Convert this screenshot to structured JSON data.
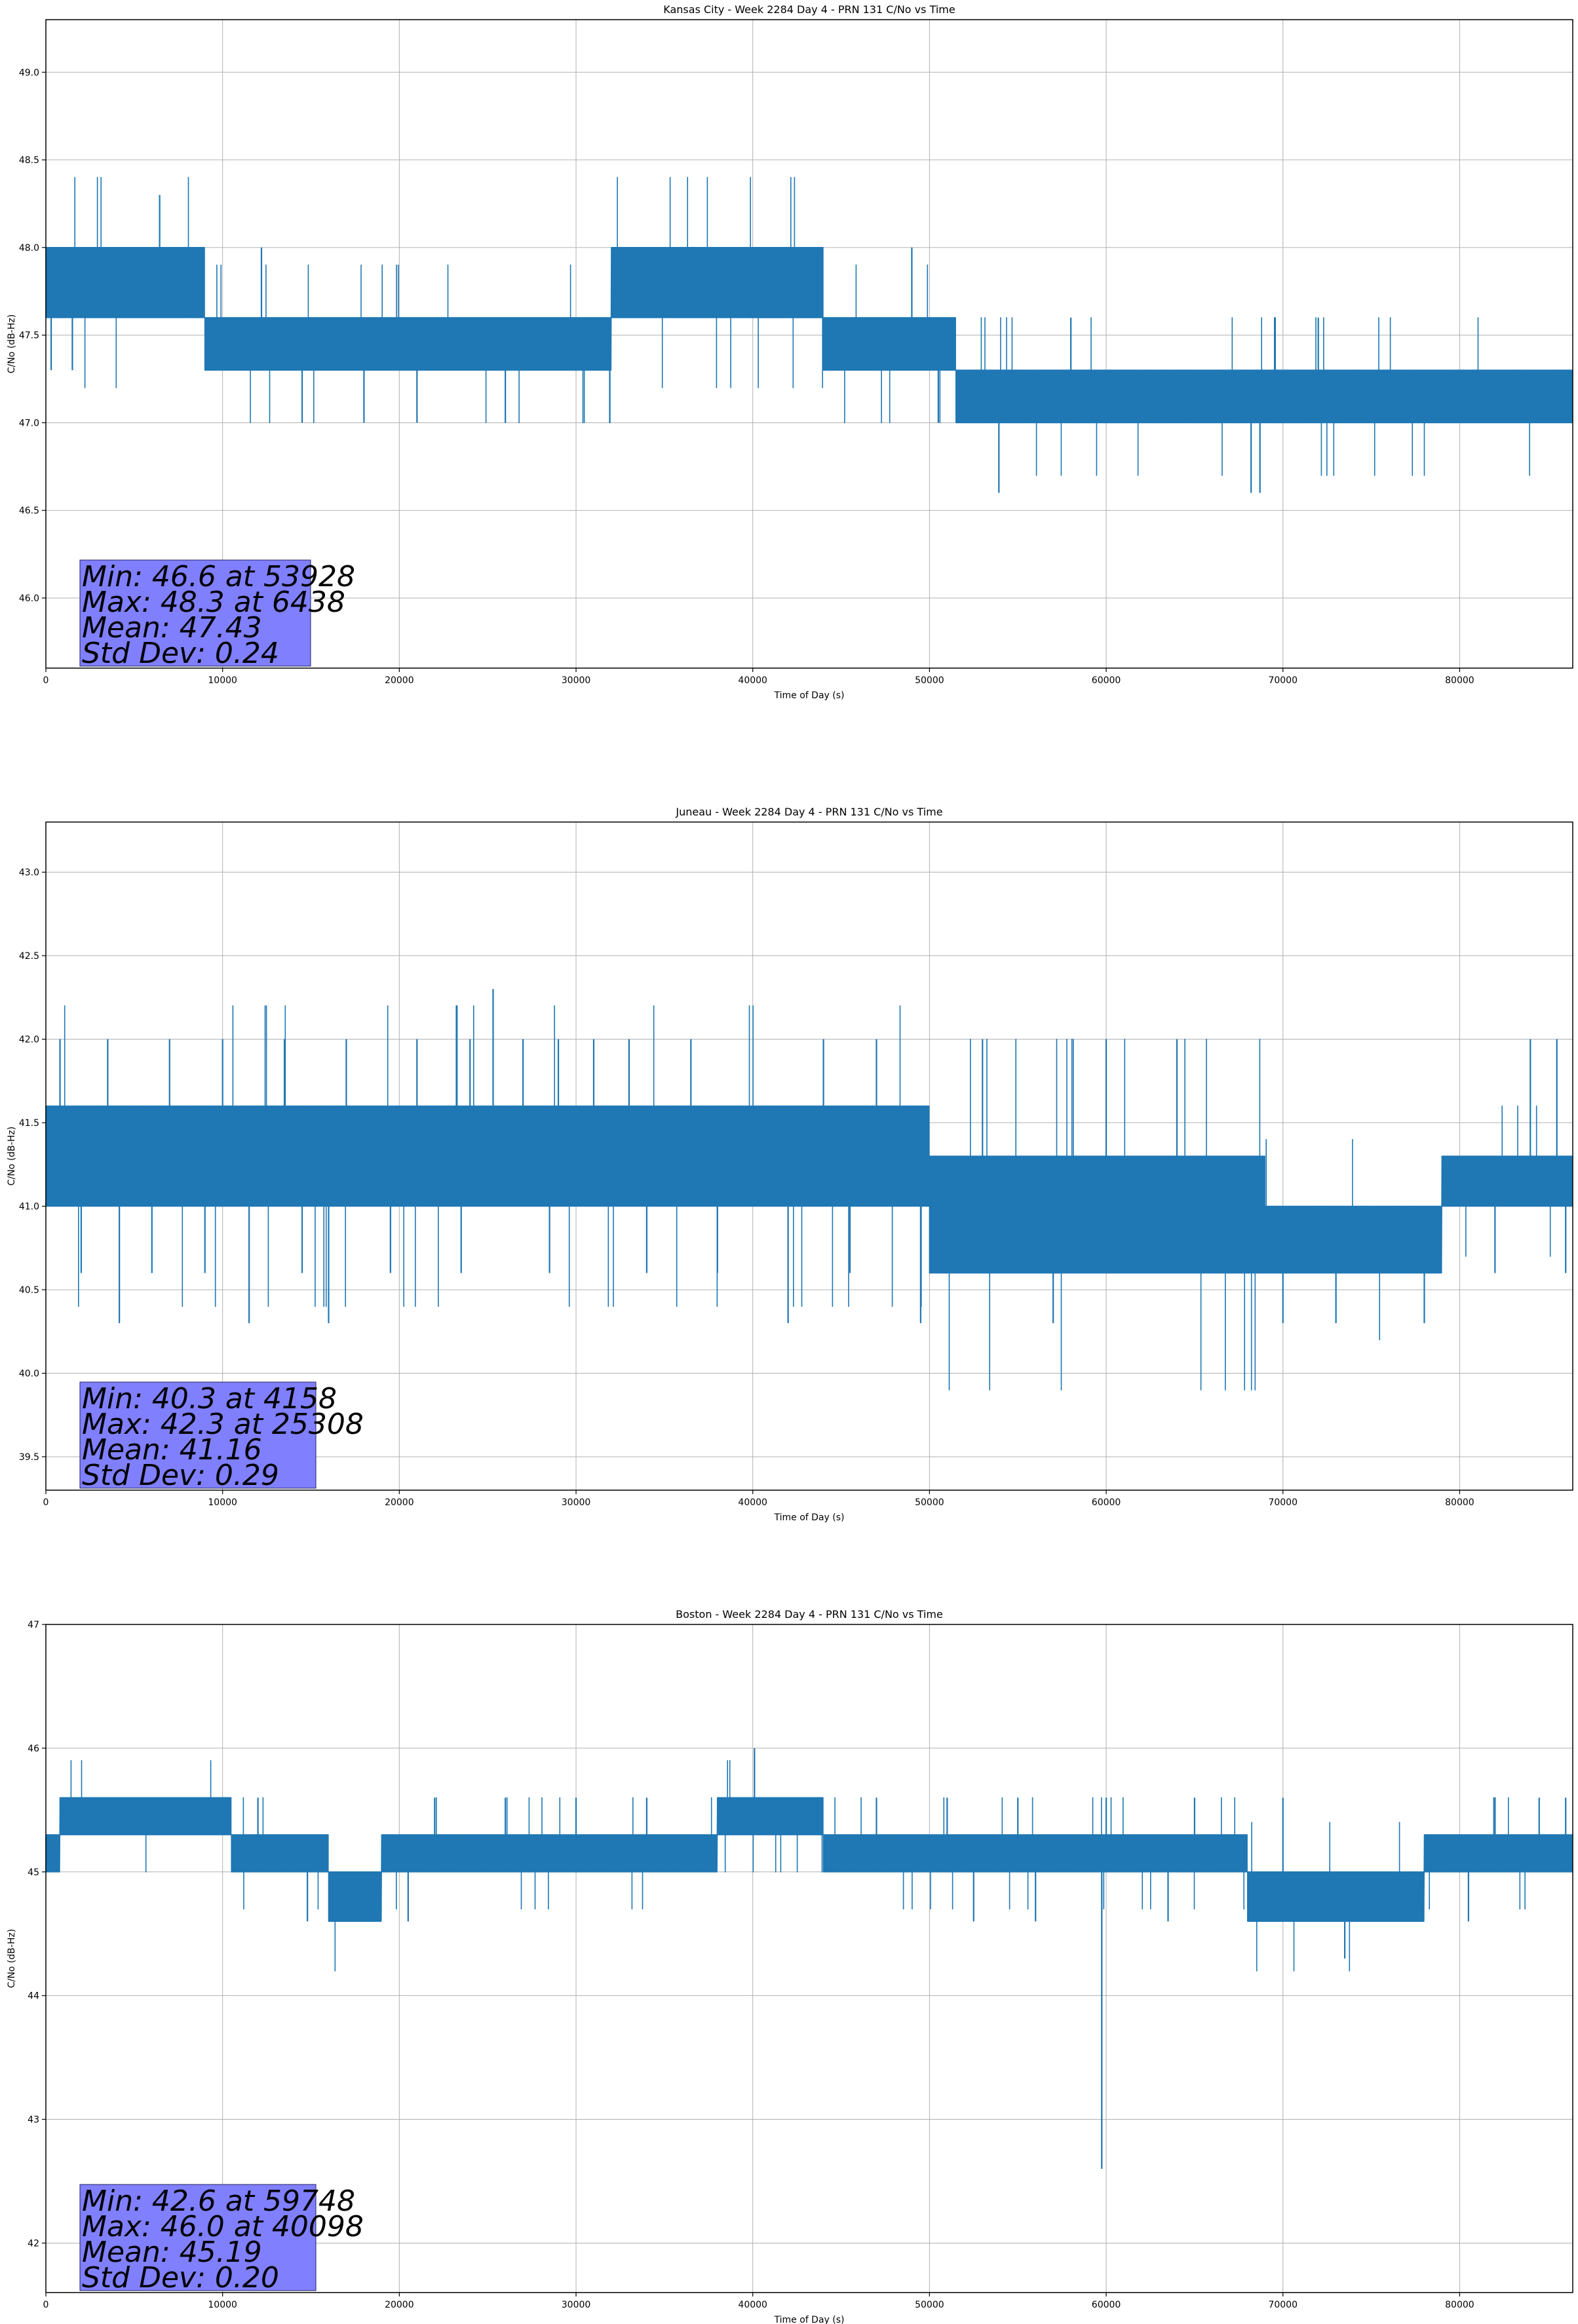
{
  "chart_data": [
    {
      "type": "line",
      "title": "Kansas City - Week 2284 Day 4 - PRN 131 C/No vs Time",
      "xlabel": "Time of Day (s)",
      "ylabel": "C/No (dB-Hz)",
      "xlim": [
        0,
        86400
      ],
      "ylim": [
        45.6,
        49.3
      ],
      "xticks": [
        0,
        10000,
        20000,
        30000,
        40000,
        50000,
        60000,
        70000,
        80000
      ],
      "xtick_labels": [
        "0",
        "10000",
        "20000",
        "30000",
        "40000",
        "50000",
        "60000",
        "70000",
        "80000"
      ],
      "yticks": [
        46.0,
        46.5,
        47.0,
        47.5,
        48.0,
        48.5,
        49.0
      ],
      "ytick_labels": [
        "46.0",
        "46.5",
        "47.0",
        "47.5",
        "48.0",
        "48.5",
        "49.0"
      ],
      "grid": true,
      "series": [
        {
          "color": "#1f77b4",
          "segments": [
            {
              "x": [
                0,
                9000
              ],
              "low": 47.6,
              "high": 48.0
            },
            {
              "x": [
                9000,
                32000
              ],
              "low": 47.3,
              "high": 47.6
            },
            {
              "x": [
                32000,
                44000
              ],
              "low": 47.6,
              "high": 48.0
            },
            {
              "x": [
                44000,
                51500
              ],
              "low": 47.3,
              "high": 47.6
            },
            {
              "x": [
                51500,
                86400
              ],
              "low": 47.0,
              "high": 47.3
            }
          ],
          "spikes": [
            [
              6438,
              48.3
            ],
            [
              53928,
              46.6
            ],
            [
              68200,
              46.6
            ],
            [
              68700,
              46.6
            ],
            [
              300,
              47.3
            ],
            [
              1500,
              47.3
            ],
            [
              12200,
              48.0
            ],
            [
              14500,
              47.0
            ],
            [
              18000,
              47.0
            ],
            [
              21000,
              47.0
            ],
            [
              26000,
              47.0
            ],
            [
              37000,
              47.6
            ],
            [
              49000,
              48.0
            ],
            [
              50500,
              47.0
            ],
            [
              58000,
              47.6
            ],
            [
              72000,
              47.6
            ]
          ]
        }
      ],
      "stats": {
        "min": "Min: 46.6 at 53928",
        "max": "Max: 48.3 at 6438",
        "mean": "Mean: 47.43",
        "std": "Std Dev: 0.24"
      },
      "statbox_color": "#8080ff"
    },
    {
      "type": "line",
      "title": "Juneau - Week 2284 Day 4 - PRN 131 C/No vs Time",
      "xlabel": "Time of Day (s)",
      "ylabel": "C/No (dB-Hz)",
      "xlim": [
        0,
        86400
      ],
      "ylim": [
        39.3,
        43.3
      ],
      "xticks": [
        0,
        10000,
        20000,
        30000,
        40000,
        50000,
        60000,
        70000,
        80000
      ],
      "xtick_labels": [
        "0",
        "10000",
        "20000",
        "30000",
        "40000",
        "50000",
        "60000",
        "70000",
        "80000"
      ],
      "yticks": [
        39.5,
        40.0,
        40.5,
        41.0,
        41.5,
        42.0,
        42.5,
        43.0
      ],
      "ytick_labels": [
        "39.5",
        "40.0",
        "40.5",
        "41.0",
        "41.5",
        "42.0",
        "42.5",
        "43.0"
      ],
      "grid": true,
      "series": [
        {
          "color": "#1f77b4",
          "segments": [
            {
              "x": [
                0,
                50000
              ],
              "low": 41.0,
              "high": 41.6
            },
            {
              "x": [
                50000,
                69000
              ],
              "low": 40.6,
              "high": 41.3
            },
            {
              "x": [
                69000,
                79000
              ],
              "low": 40.6,
              "high": 41.0
            },
            {
              "x": [
                79000,
                86400
              ],
              "low": 41.0,
              "high": 41.3
            }
          ],
          "spikes": [
            [
              4158,
              40.3
            ],
            [
              25308,
              42.3
            ],
            [
              11500,
              40.3
            ],
            [
              16000,
              40.3
            ],
            [
              42000,
              40.3
            ],
            [
              49500,
              40.3
            ],
            [
              57000,
              40.3
            ],
            [
              70000,
              40.3
            ],
            [
              73000,
              40.3
            ],
            [
              78000,
              40.3
            ],
            [
              800,
              42.0
            ],
            [
              3500,
              42.0
            ],
            [
              7000,
              42.0
            ],
            [
              10000,
              42.0
            ],
            [
              13500,
              42.0
            ],
            [
              17000,
              42.0
            ],
            [
              21000,
              42.0
            ],
            [
              24000,
              42.0
            ],
            [
              27000,
              42.0
            ],
            [
              29000,
              42.0
            ],
            [
              31000,
              42.0
            ],
            [
              33000,
              42.0
            ],
            [
              36500,
              42.0
            ],
            [
              44000,
              42.0
            ],
            [
              47000,
              42.0
            ],
            [
              53000,
              42.0
            ],
            [
              60000,
              42.0
            ],
            [
              64000,
              42.0
            ],
            [
              84000,
              42.0
            ],
            [
              85500,
              42.0
            ],
            [
              2000,
              40.6
            ],
            [
              6000,
              40.6
            ],
            [
              9000,
              40.6
            ],
            [
              14500,
              40.6
            ],
            [
              19500,
              40.6
            ],
            [
              23500,
              40.6
            ],
            [
              28500,
              40.6
            ],
            [
              34000,
              40.6
            ],
            [
              38000,
              40.6
            ],
            [
              45500,
              40.6
            ],
            [
              61000,
              40.6
            ],
            [
              66000,
              40.6
            ],
            [
              82000,
              40.6
            ],
            [
              86000,
              40.6
            ]
          ]
        }
      ],
      "stats": {
        "min": "Min: 40.3 at 4158",
        "max": "Max: 42.3 at 25308",
        "mean": "Mean: 41.16",
        "std": "Std Dev: 0.29"
      },
      "statbox_color": "#8080ff"
    },
    {
      "type": "line",
      "title": "Boston - Week 2284 Day 4 - PRN 131 C/No vs Time",
      "xlabel": "Time of Day (s)",
      "ylabel": "C/No (dB-Hz)",
      "xlim": [
        0,
        86400
      ],
      "ylim": [
        41.6,
        47.0
      ],
      "xticks": [
        0,
        10000,
        20000,
        30000,
        40000,
        50000,
        60000,
        70000,
        80000
      ],
      "xtick_labels": [
        "0",
        "10000",
        "20000",
        "30000",
        "40000",
        "50000",
        "60000",
        "70000",
        "80000"
      ],
      "yticks": [
        42,
        43,
        44,
        45,
        46,
        47
      ],
      "ytick_labels": [
        "42",
        "43",
        "44",
        "45",
        "46",
        "47"
      ],
      "grid": true,
      "series": [
        {
          "color": "#1f77b4",
          "segments": [
            {
              "x": [
                0,
                800
              ],
              "low": 45.0,
              "high": 45.3
            },
            {
              "x": [
                800,
                10500
              ],
              "low": 45.3,
              "high": 45.6
            },
            {
              "x": [
                10500,
                16000
              ],
              "low": 45.0,
              "high": 45.3
            },
            {
              "x": [
                16000,
                19000
              ],
              "low": 44.6,
              "high": 45.0
            },
            {
              "x": [
                19000,
                38000
              ],
              "low": 45.0,
              "high": 45.3
            },
            {
              "x": [
                38000,
                44000
              ],
              "low": 45.3,
              "high": 45.6
            },
            {
              "x": [
                44000,
                68000
              ],
              "low": 45.0,
              "high": 45.3
            },
            {
              "x": [
                68000,
                78000
              ],
              "low": 44.6,
              "high": 45.0
            },
            {
              "x": [
                78000,
                86400
              ],
              "low": 45.0,
              "high": 45.3
            }
          ],
          "spikes": [
            [
              59748,
              42.6
            ],
            [
              40098,
              46.0
            ],
            [
              73500,
              44.3
            ],
            [
              14800,
              44.6
            ],
            [
              20500,
              44.6
            ],
            [
              52500,
              44.6
            ],
            [
              56000,
              44.6
            ],
            [
              63500,
              44.6
            ],
            [
              80500,
              44.6
            ],
            [
              12000,
              45.6
            ],
            [
              22000,
              45.6
            ],
            [
              26000,
              45.6
            ],
            [
              30000,
              45.6
            ],
            [
              34000,
              45.6
            ],
            [
              47000,
              45.6
            ],
            [
              51000,
              45.6
            ],
            [
              55000,
              45.6
            ],
            [
              60000,
              45.6
            ],
            [
              65000,
              45.6
            ],
            [
              70000,
              45.6
            ],
            [
              82000,
              45.6
            ],
            [
              84500,
              45.6
            ],
            [
              86000,
              45.6
            ]
          ]
        }
      ],
      "stats": {
        "min": "Min: 42.6 at 59748",
        "max": "Max: 46.0 at 40098",
        "mean": "Mean: 45.19",
        "std": "Std Dev: 0.20"
      },
      "statbox_color": "#8080ff"
    }
  ]
}
